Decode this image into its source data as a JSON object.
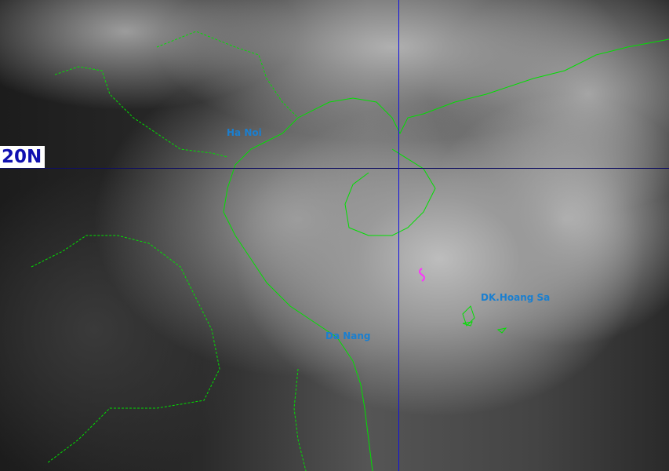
{
  "map": {
    "latitude_label": "20N",
    "places": [
      {
        "name": "Ha Noi"
      },
      {
        "name": "Da Nang"
      },
      {
        "name": "DK.Hoang Sa"
      }
    ],
    "colors": {
      "coastline": "#00e000",
      "grid_vertical": "#1010e0",
      "grid_horizontal": "#101060",
      "labels": "#1a7fd0",
      "storm_marker": "#ff30ff"
    },
    "storm_marker_icon": "tropical-cyclone-icon"
  }
}
